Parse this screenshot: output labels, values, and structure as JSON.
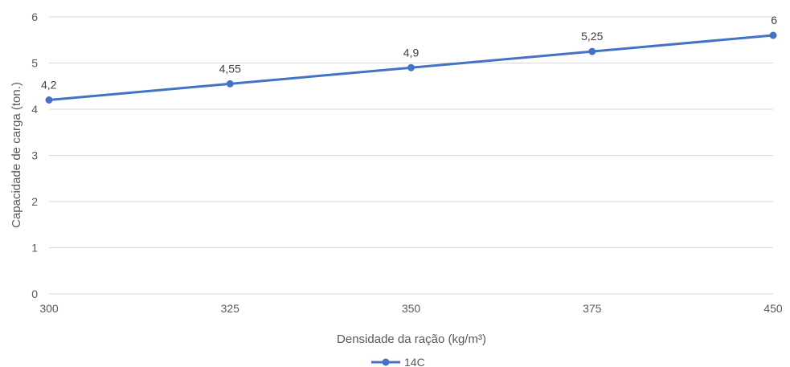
{
  "chart_data": {
    "type": "line",
    "categories": [
      "300",
      "325",
      "350",
      "375",
      "450"
    ],
    "series": [
      {
        "name": "14C",
        "values": [
          4.2,
          4.55,
          4.9,
          5.25,
          5.6
        ]
      }
    ],
    "data_labels": [
      "4,2",
      "4,55",
      "4,9",
      "5,25",
      "6"
    ],
    "y_ticks": [
      "0",
      "1",
      "2",
      "3",
      "4",
      "5",
      "6"
    ],
    "xlabel": "Densidade da ração (kg/m³)",
    "ylabel": "Capacidade de carga (ton.)",
    "ylim": [
      0,
      6
    ],
    "grid": true,
    "legend_position": "bottom",
    "colors": {
      "series": "#4472C4",
      "grid": "#d9d9d9",
      "text": "#595959"
    }
  }
}
